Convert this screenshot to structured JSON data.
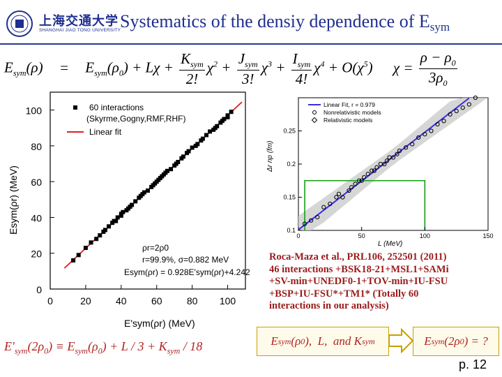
{
  "header": {
    "title_main": "Systematics of the densiy dependence of E",
    "title_sub": "sym",
    "logo_cn": "上海交通大学",
    "logo_en": "SHANGHAI JIAO TONG UNIVERSITY"
  },
  "equation_main": {
    "lhs": "E",
    "lhs_sub": "sym",
    "lhs_arg": "(ρ)",
    "eq": "=",
    "t1": "E",
    "t1_sub": "sym",
    "t1_arg": "(ρ",
    "t1_arg_sub": "0",
    "t1_close": ")",
    "plus": "+",
    "L_term": "Lχ",
    "K_num": "K",
    "K_sub": "sym",
    "K_den": "2!",
    "chi2": "χ",
    "p2": "2",
    "J_num": "J",
    "J_sub": "sym",
    "J_den": "3!",
    "chi3": "χ",
    "p3": "3",
    "I_num": "I",
    "I_sub": "sym",
    "I_den": "4!",
    "chi4": "χ",
    "p4": "4",
    "O_term": "+ O(χ",
    "p5": "5",
    "O_close": ")",
    "chi_def": "χ =",
    "chi_num": "ρ − ρ",
    "chi_num_sub": "0",
    "chi_den": "3ρ",
    "chi_den_sub": "0"
  },
  "chart_data": [
    {
      "type": "scatter",
      "legend_position": "top-left",
      "legend": [
        "60 interactions",
        "(Skyrme,Gogny,RMF,RHF)",
        "Linear fit"
      ],
      "xlabel": "E'sym(ρr) (MeV)",
      "ylabel": "Esym(ρr) (MeV)",
      "xlim": [
        0,
        110
      ],
      "ylim": [
        0,
        110
      ],
      "xticks": [
        "0",
        "20",
        "40",
        "60",
        "80",
        "100"
      ],
      "yticks": [
        "0",
        "20",
        "40",
        "60",
        "80",
        "100"
      ],
      "annotations": [
        "ρr=2ρ0",
        "r=99.9%, σ=0.882 MeV",
        "Esym(ρr) = 0.928E'sym(ρr)+4.242"
      ],
      "fit": {
        "slope": 0.928,
        "intercept": 4.242
      },
      "x": [
        13,
        16,
        20,
        23,
        26,
        28,
        30,
        31,
        33,
        35,
        36,
        37,
        38,
        40,
        40,
        41,
        43,
        44,
        45,
        46,
        48,
        50,
        51,
        52,
        53,
        55,
        57,
        58,
        59,
        60,
        61,
        62,
        63,
        64,
        65,
        66,
        68,
        70,
        71,
        72,
        74,
        75,
        77,
        78,
        80,
        82,
        83,
        85,
        86,
        88,
        90,
        92,
        93,
        94,
        96,
        97,
        98,
        100,
        100,
        102
      ],
      "y": [
        16,
        19,
        23,
        26,
        28,
        30,
        32,
        33,
        35,
        37,
        38,
        38,
        40,
        42,
        41,
        43,
        44,
        45,
        46,
        47,
        49,
        51,
        52,
        53,
        54,
        55,
        57,
        58,
        59,
        60,
        61,
        62,
        63,
        64,
        65,
        66,
        67,
        69,
        70,
        71,
        73,
        74,
        76,
        77,
        79,
        80,
        81,
        83,
        84,
        86,
        88,
        89,
        90,
        91,
        93,
        94,
        95,
        97,
        96,
        99
      ],
      "colors": {
        "points": "#000000",
        "fit": "#e02020"
      }
    },
    {
      "type": "scatter",
      "legend_position": "top-left",
      "legend": [
        "Linear Fit, r = 0.979",
        "Nonrelativistic models",
        "Relativistic models"
      ],
      "xlabel": "L (MeV)",
      "ylabel": "Δr np (fm)",
      "xlim": [
        0,
        150
      ],
      "ylim": [
        0.1,
        0.3
      ],
      "xticks": [
        "0",
        "50",
        "100",
        "150"
      ],
      "yticks": [
        "0.1",
        "0.15",
        "0.2",
        "0.25"
      ],
      "fit": {
        "slope": 0.00147,
        "intercept": 0.101
      },
      "x": [
        5,
        10,
        15,
        20,
        25,
        30,
        32,
        35,
        40,
        42,
        45,
        48,
        50,
        52,
        55,
        58,
        60,
        62,
        65,
        68,
        70,
        72,
        75,
        78,
        80,
        85,
        90,
        95,
        100,
        105,
        110,
        115,
        120,
        125,
        130,
        135,
        140
      ],
      "y": [
        0.11,
        0.115,
        0.12,
        0.135,
        0.14,
        0.15,
        0.155,
        0.15,
        0.16,
        0.165,
        0.17,
        0.175,
        0.175,
        0.18,
        0.185,
        0.19,
        0.19,
        0.195,
        0.2,
        0.2,
        0.205,
        0.21,
        0.21,
        0.215,
        0.22,
        0.225,
        0.23,
        0.24,
        0.245,
        0.25,
        0.26,
        0.265,
        0.275,
        0.28,
        0.285,
        0.29,
        0.3
      ],
      "colors": {
        "fit": "#3a2ee0",
        "band": "#cccccc",
        "guide": "#13a013"
      }
    }
  ],
  "reference": {
    "line1": "Roca-Maza et al., PRL106, 252501 (2011)",
    "line2": "46 interactions +BSK18-21+MSL1+SAMi",
    "line3": "+SV-min+UNEDF0-1+TOV-min+IU-FSU",
    "line4": "+BSP+IU-FSU*+TM1* (Totally 60",
    "line5": "interactions in our analysis)"
  },
  "equation_bottom": {
    "lhs": "E'",
    "lhs_sub": "sym",
    "lhs_arg": "(2ρ",
    "lhs_arg_sub": "0",
    "eq": ") ≡ E",
    "t1_sub": "sym",
    "t1_arg": "(ρ",
    "t1_arg_sub": "0",
    "rest": ") + L / 3 + K",
    "K_sub": "sym",
    "tail": " / 18"
  },
  "box_left": {
    "e": "E",
    "e_sub": "sym",
    "arg": "(ρ",
    "arg_sub": "0",
    "rest": "),  L,  and K",
    "k_sub": "sym"
  },
  "box_right": {
    "e": "E",
    "e_sub": "sym",
    "arg": "(2ρ",
    "arg_sub": "0",
    "rest": ") = ?"
  },
  "footer": {
    "page": "p. 12"
  }
}
